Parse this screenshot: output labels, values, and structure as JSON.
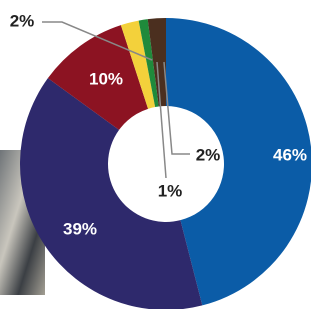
{
  "chart_data": {
    "type": "pie",
    "donut": true,
    "categories": [
      null,
      null,
      null,
      null,
      null,
      null
    ],
    "values": [
      46,
      39,
      10,
      2,
      1,
      2
    ],
    "value_labels": [
      "46%",
      "39%",
      "10%",
      "2%",
      "1%",
      "2%"
    ],
    "colors": [
      "#0b5ca7",
      "#2e296c",
      "#8c1322",
      "#f3d13b",
      "#1f8a3b",
      "#4b2f1f"
    ]
  }
}
